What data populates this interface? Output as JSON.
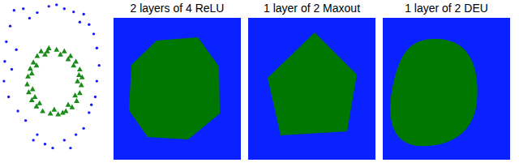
{
  "chart_data": {
    "type": "scatter",
    "tick_labels": false,
    "grid": false,
    "xlim": [
      0,
      130
    ],
    "ylim": [
      0,
      206
    ],
    "series": [
      {
        "color": "#1a1aff",
        "marker": "circle",
        "x": [
          15,
          27,
          45,
          70,
          80,
          92,
          105,
          112,
          118,
          122,
          100,
          10,
          5,
          3,
          2,
          8,
          20,
          30,
          45,
          55,
          65,
          80,
          95,
          105,
          112,
          120,
          122,
          125,
          18,
          12,
          40,
          88,
          115,
          60,
          35
        ],
        "values": [
          196,
          198,
          193,
          203,
          198,
          194,
          191,
          178,
          166,
          148,
          181,
          176,
          156,
          131,
          106,
          86,
          68,
          56,
          38,
          26,
          21,
          31,
          38,
          46,
          66,
          86,
          106,
          126,
          146,
          121,
          31,
          21,
          76,
          201,
          186
        ]
      },
      {
        "color": "#1a8c1a",
        "marker": "triangle",
        "x": [
          50,
          60,
          70,
          80,
          88,
          95,
          100,
          103,
          102,
          100,
          96,
          90,
          82,
          72,
          62,
          52,
          44,
          38,
          34,
          32,
          33,
          36,
          40,
          45,
          55,
          75,
          92,
          97,
          94,
          85,
          67,
          48,
          39,
          38,
          44,
          58,
          85,
          99,
          78,
          42
        ],
        "values": [
          144,
          148,
          146,
          144,
          138,
          131,
          121,
          111,
          101,
          91,
          81,
          73,
          68,
          64,
          65,
          68,
          74,
          82,
          92,
          102,
          112,
          122,
          130,
          138,
          140,
          140,
          126,
          106,
          88,
          76,
          70,
          78,
          96,
          116,
          126,
          144,
          134,
          114,
          66,
          86
        ]
      }
    ]
  },
  "panels": [
    {
      "title": "2 layers of 4 ReLU",
      "background": "#0a22ff",
      "region": "#007700"
    },
    {
      "title": "1 layer of 2 Maxout",
      "background": "#0a22ff",
      "region": "#007700"
    },
    {
      "title": "1 layer of 2 DEU",
      "background": "#0a22ff",
      "region": "#007700"
    }
  ]
}
